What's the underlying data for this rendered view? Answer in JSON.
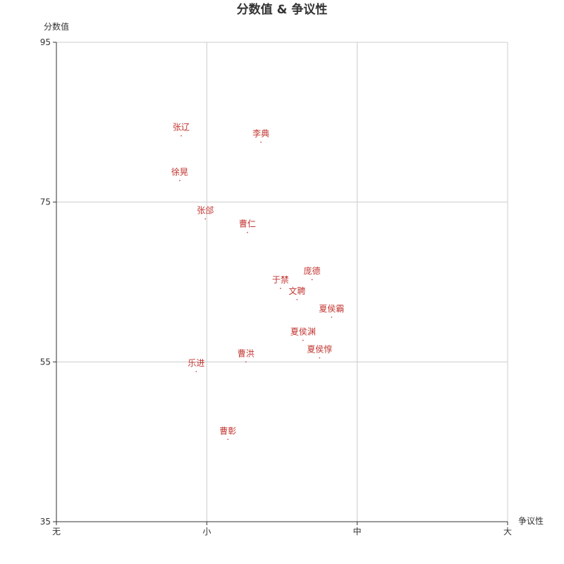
{
  "chart_data": {
    "type": "scatter",
    "title": "分数值 & 争议性",
    "xlabel": "争议性",
    "ylabel": "分数值",
    "x_categories": [
      "无",
      "小",
      "中",
      "大"
    ],
    "xlim": [
      0,
      3
    ],
    "ylim": [
      35,
      95
    ],
    "y_ticks": [
      35,
      55,
      75,
      95
    ],
    "grid": true,
    "point_color": "#c23531",
    "points": [
      {
        "name": "张辽",
        "x": 0.83,
        "y": 83.3
      },
      {
        "name": "李典",
        "x": 1.36,
        "y": 82.5
      },
      {
        "name": "徐晃",
        "x": 0.82,
        "y": 77.7
      },
      {
        "name": "张郃",
        "x": 0.99,
        "y": 72.9
      },
      {
        "name": "曹仁",
        "x": 1.27,
        "y": 71.2
      },
      {
        "name": "庞德",
        "x": 1.7,
        "y": 65.3
      },
      {
        "name": "于禁",
        "x": 1.49,
        "y": 64.2
      },
      {
        "name": "文聘",
        "x": 1.6,
        "y": 62.8
      },
      {
        "name": "夏侯霸",
        "x": 1.83,
        "y": 60.6
      },
      {
        "name": "夏侯渊",
        "x": 1.64,
        "y": 57.7
      },
      {
        "name": "夏侯惇",
        "x": 1.75,
        "y": 55.5
      },
      {
        "name": "曹洪",
        "x": 1.26,
        "y": 55.0
      },
      {
        "name": "乐进",
        "x": 0.93,
        "y": 53.8
      },
      {
        "name": "曹彰",
        "x": 1.14,
        "y": 45.3
      }
    ]
  }
}
